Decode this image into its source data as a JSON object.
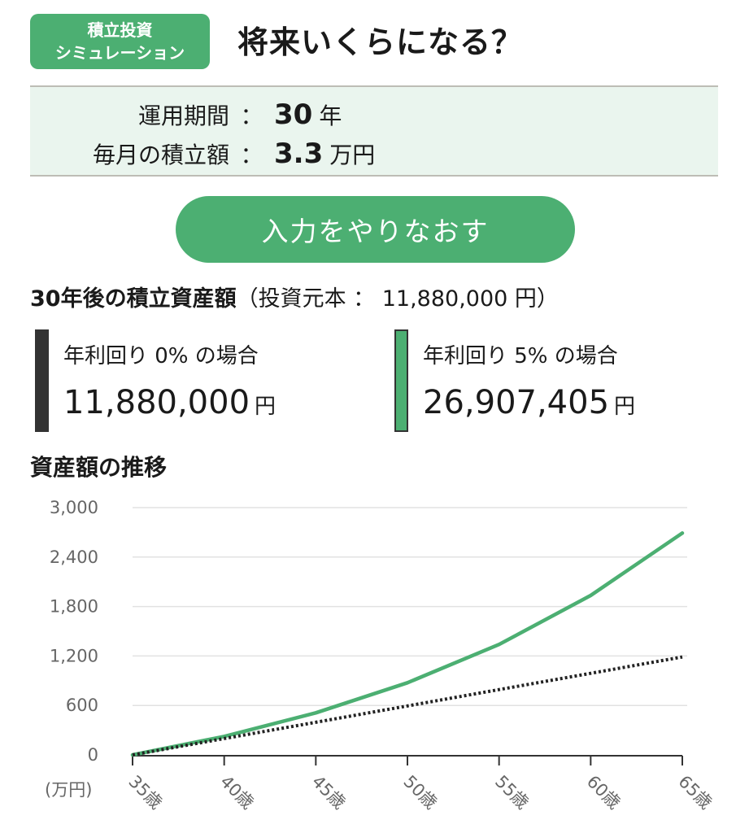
{
  "badge": {
    "line1": "積立投資",
    "line2": "シミュレーション"
  },
  "title": "将来いくらになる？",
  "inputs": {
    "period_label": "運用期間",
    "period_value": "30",
    "period_unit": "年",
    "monthly_label": "毎月の積立額",
    "monthly_value": "3.3",
    "monthly_unit": "万円",
    "colon": "："
  },
  "redo_button": "入力をやりなおす",
  "summary": {
    "heading": "30年後の積立資産額",
    "principal_text": "（投資元本 ： 11,880,000 円）"
  },
  "results": [
    {
      "label": "年利回り 0% の場合",
      "amount": "11,880,000",
      "unit": "円",
      "color": "#333333"
    },
    {
      "label": "年利回り 5% の場合",
      "amount": "26,907,405",
      "unit": "円",
      "color": "#4caf72"
    }
  ],
  "chart_section_title": "資産額の推移",
  "chart_data": {
    "type": "line",
    "y_unit_label": "(万円)",
    "ylim": [
      0,
      3000
    ],
    "y_ticks": [
      "0",
      "600",
      "1,200",
      "1,800",
      "2,400",
      "3,000"
    ],
    "y_tick_values": [
      0,
      600,
      1200,
      1800,
      2400,
      3000
    ],
    "x_tick_labels": [
      "35歳",
      "40歳",
      "45歳",
      "50歳",
      "55歳",
      "60歳",
      "65歳"
    ],
    "x": [
      35,
      40,
      45,
      50,
      55,
      60,
      65
    ],
    "grid": true,
    "series": [
      {
        "values": [
          0,
          224,
          510,
          875,
          1340,
          1934,
          2691
        ],
        "color": "#4caf72",
        "style": "solid"
      },
      {
        "values": [
          0,
          198,
          396,
          594,
          792,
          990,
          1188
        ],
        "color": "#222222",
        "style": "dotted"
      }
    ]
  }
}
